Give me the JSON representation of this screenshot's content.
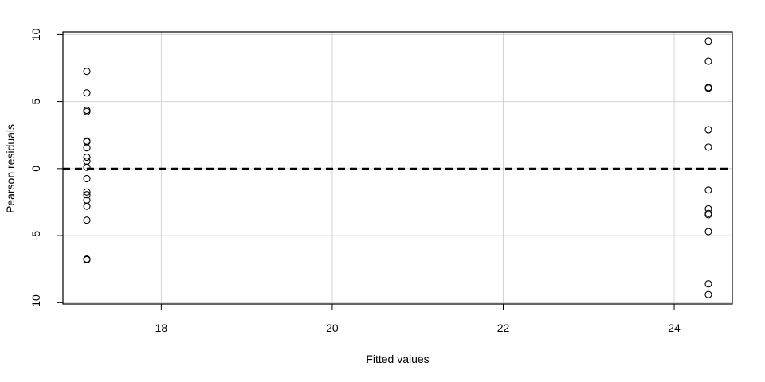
{
  "chart_data": {
    "type": "scatter",
    "title": "",
    "xlabel": "Fitted values",
    "ylabel": "Pearson residuals",
    "xlim": [
      16.85,
      24.68
    ],
    "ylim": [
      -10.1,
      10.2
    ],
    "x_ticks": [
      18,
      20,
      22,
      24
    ],
    "y_ticks": [
      -10,
      -5,
      0,
      5,
      10
    ],
    "x_tick_labels": [
      "18",
      "20",
      "22",
      "24"
    ],
    "y_tick_labels": [
      "-10",
      "-5",
      "0",
      "5",
      "10"
    ],
    "grid": true,
    "reference_line": {
      "y": 0,
      "style": "dashed"
    },
    "points": [
      {
        "x": 17.13,
        "y": 7.25
      },
      {
        "x": 17.13,
        "y": 5.65
      },
      {
        "x": 17.13,
        "y": 4.35
      },
      {
        "x": 17.13,
        "y": 4.25
      },
      {
        "x": 17.13,
        "y": 2.05
      },
      {
        "x": 17.13,
        "y": 2.0
      },
      {
        "x": 17.13,
        "y": 1.55
      },
      {
        "x": 17.13,
        "y": 0.85
      },
      {
        "x": 17.13,
        "y": 0.55
      },
      {
        "x": 17.13,
        "y": 0.1
      },
      {
        "x": 17.13,
        "y": -0.75
      },
      {
        "x": 17.13,
        "y": -1.75
      },
      {
        "x": 17.13,
        "y": -1.95
      },
      {
        "x": 17.13,
        "y": -2.35
      },
      {
        "x": 17.13,
        "y": -2.8
      },
      {
        "x": 17.13,
        "y": -3.85
      },
      {
        "x": 17.13,
        "y": -6.75
      },
      {
        "x": 17.13,
        "y": -6.8
      },
      {
        "x": 24.4,
        "y": 9.5
      },
      {
        "x": 24.4,
        "y": 8.0
      },
      {
        "x": 24.4,
        "y": 6.05
      },
      {
        "x": 24.4,
        "y": 6.0
      },
      {
        "x": 24.4,
        "y": 2.9
      },
      {
        "x": 24.4,
        "y": 1.6
      },
      {
        "x": 24.4,
        "y": -1.6
      },
      {
        "x": 24.4,
        "y": -3.0
      },
      {
        "x": 24.4,
        "y": -3.35
      },
      {
        "x": 24.4,
        "y": -3.45
      },
      {
        "x": 24.4,
        "y": -4.7
      },
      {
        "x": 24.4,
        "y": -8.6
      },
      {
        "x": 24.4,
        "y": -9.4
      }
    ]
  }
}
